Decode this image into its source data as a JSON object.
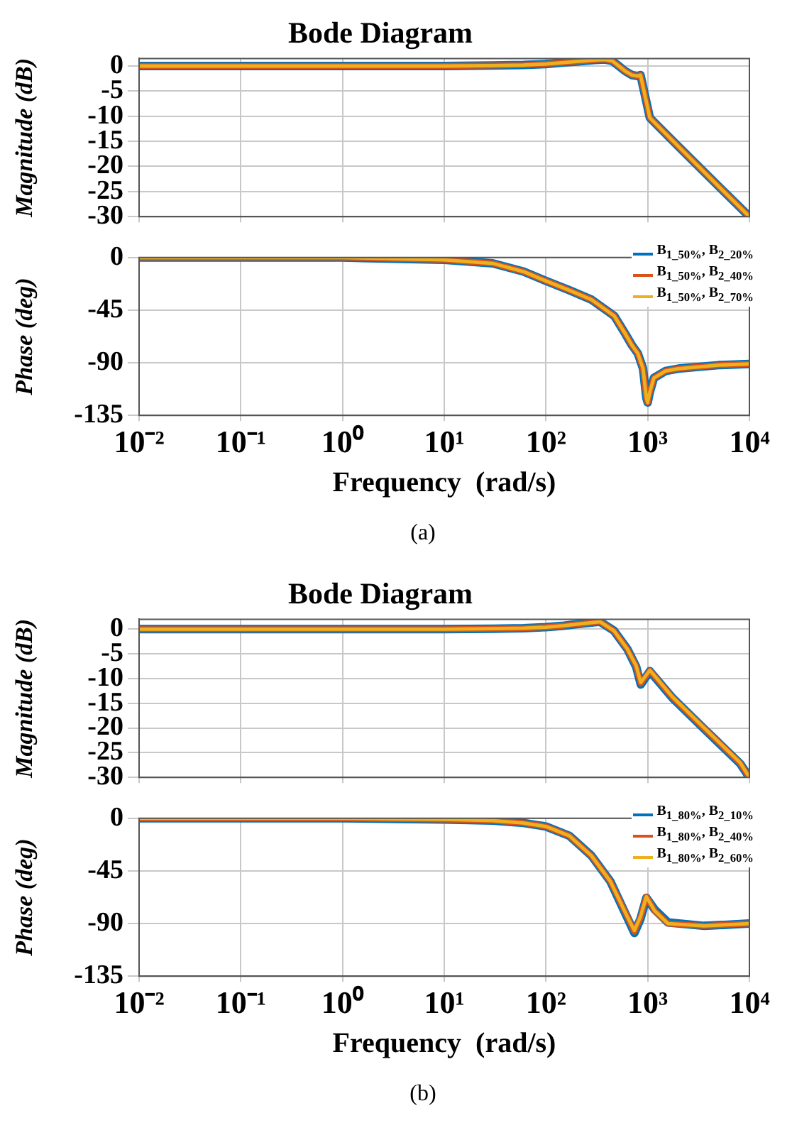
{
  "chart_data": [
    {
      "type": "line",
      "title": "Bode Diagram",
      "ylabel": "Magnitude (dB)",
      "log": "x",
      "grid": true,
      "tick_labels": "y",
      "xlim": [
        0.01,
        10000
      ],
      "xticks": [
        {
          "value": 0.01,
          "label": null
        },
        {
          "value": 0.1,
          "label": null
        },
        {
          "value": 1,
          "label": null
        },
        {
          "value": 10,
          "label": null
        },
        {
          "value": 100,
          "label": null
        },
        {
          "value": 1000,
          "label": null
        },
        {
          "value": 10000,
          "label": null
        }
      ],
      "ylim": [
        -30,
        1.5
      ],
      "yticks": [
        0,
        -5,
        -10,
        -15,
        -20,
        -25,
        -30
      ],
      "x": [
        0.01,
        1,
        10,
        30,
        60,
        100,
        150,
        200,
        300,
        380,
        450,
        520,
        600,
        700,
        800,
        850,
        1050,
        1200,
        2000,
        5000,
        10000
      ],
      "series": [
        {
          "color": "#0072bd",
          "values": [
            0,
            0,
            0,
            0.1,
            0.2,
            0.4,
            0.7,
            0.9,
            1.2,
            1.3,
            1.0,
            0,
            -1.0,
            -1.8,
            -2.0,
            -1.8,
            -10.3,
            -11.5,
            -16,
            -24,
            -30
          ]
        },
        {
          "color": "#d95319",
          "values": [
            0,
            0,
            0,
            0.1,
            0.2,
            0.4,
            0.7,
            0.9,
            1.2,
            1.3,
            1.0,
            0,
            -1.0,
            -1.8,
            -2.0,
            -1.8,
            -10.3,
            -11.5,
            -16,
            -24,
            -30
          ]
        },
        {
          "color": "#edb120",
          "values": [
            0,
            0,
            0,
            0.1,
            0.2,
            0.4,
            0.7,
            0.9,
            1.2,
            1.3,
            1.0,
            0,
            -1.0,
            -1.8,
            -2.0,
            -1.8,
            -10.3,
            -11.5,
            -16,
            -24,
            -30
          ]
        }
      ]
    },
    {
      "type": "line",
      "ylabel": "Phase (deg)",
      "xlabel": "Frequency  (rad/s)",
      "log": "x",
      "grid": true,
      "legend": "top right",
      "annotations": [
        "(a)"
      ],
      "xlim": [
        0.01,
        10000
      ],
      "xticks": [
        {
          "value": 0.01,
          "label": "10⁻²"
        },
        {
          "value": 0.1,
          "label": "10⁻¹"
        },
        {
          "value": 1,
          "label": "10⁰"
        },
        {
          "value": 10,
          "label": "10¹"
        },
        {
          "value": 100,
          "label": "10²"
        },
        {
          "value": 1000,
          "label": "10³"
        },
        {
          "value": 10000,
          "label": "10⁴"
        }
      ],
      "ylim": [
        -135,
        0
      ],
      "yticks": [
        0,
        -45,
        -90,
        -135
      ],
      "x": [
        0.01,
        1,
        10,
        30,
        60,
        100,
        170,
        280,
        470,
        600,
        700,
        800,
        900,
        970,
        1000,
        1050,
        1150,
        1500,
        2000,
        5000,
        10000
      ],
      "series": [
        {
          "name": "B$_{1_50%}$, B$_{2_20%}$",
          "color": "#0072bd",
          "values": [
            0,
            0,
            -2,
            -5,
            -12,
            -20,
            -28,
            -36,
            -50,
            -65,
            -75,
            -82,
            -95,
            -120,
            -124,
            -115,
            -103,
            -97,
            -95,
            -92,
            -91
          ]
        },
        {
          "name": "B$_{1_50%}$, B$_{2_40%}$",
          "color": "#d95319",
          "values": [
            0,
            0,
            -2,
            -5,
            -12,
            -20,
            -28,
            -36,
            -50,
            -65,
            -75,
            -82,
            -95,
            -120,
            -124,
            -115,
            -103,
            -97,
            -95,
            -92,
            -91
          ]
        },
        {
          "name": "B$_{1_50%}$, B$_{2_70%}$",
          "color": "#edb120",
          "values": [
            0,
            0,
            -2,
            -5,
            -12,
            -20,
            -28,
            -36,
            -50,
            -65,
            -75,
            -82,
            -95,
            -120,
            -124,
            -115,
            -103,
            -97,
            -95,
            -92,
            -91
          ]
        }
      ]
    },
    {
      "type": "line",
      "title": "Bode Diagram",
      "ylabel": "Magnitude (dB)",
      "log": "x",
      "grid": true,
      "tick_labels": "y",
      "xlim": [
        0.01,
        10000
      ],
      "xticks": [
        {
          "value": 0.01,
          "label": null
        },
        {
          "value": 0.1,
          "label": null
        },
        {
          "value": 1,
          "label": null
        },
        {
          "value": 10,
          "label": null
        },
        {
          "value": 100,
          "label": null
        },
        {
          "value": 1000,
          "label": null
        },
        {
          "value": 10000,
          "label": null
        }
      ],
      "ylim": [
        -30,
        2
      ],
      "yticks": [
        0,
        -5,
        -10,
        -15,
        -20,
        -25,
        -30
      ],
      "x": [
        0.01,
        1,
        10,
        30,
        60,
        100,
        150,
        200,
        340,
        465,
        630,
        770,
        855,
        1050,
        1750,
        3600,
        8100,
        10000
      ],
      "series": [
        {
          "color": "#0072bd",
          "values": [
            0,
            0,
            0,
            0.1,
            0.2,
            0.4,
            0.7,
            1.0,
            1.5,
            -0.3,
            -4,
            -7.6,
            -11.2,
            -8.5,
            -13.9,
            -20.2,
            -27.2,
            -30
          ]
        },
        {
          "color": "#d95319",
          "values": [
            0,
            0,
            0,
            0.1,
            0.2,
            0.4,
            0.7,
            1.0,
            1.5,
            -0.3,
            -4,
            -7.5,
            -11.0,
            -8.4,
            -13.8,
            -20.1,
            -27.1,
            -30
          ]
        },
        {
          "color": "#edb120",
          "values": [
            0,
            0,
            0,
            0.1,
            0.2,
            0.4,
            0.7,
            1.0,
            1.5,
            -0.3,
            -4,
            -7.4,
            -10.8,
            -8.3,
            -13.7,
            -20,
            -27,
            -30
          ]
        }
      ]
    },
    {
      "type": "line",
      "ylabel": "Phase (deg)",
      "xlabel": "Frequency  (rad/s)",
      "log": "x",
      "grid": true,
      "legend": "top right",
      "annotations": [
        "(b)"
      ],
      "xlim": [
        0.01,
        10000
      ],
      "xticks": [
        {
          "value": 0.01,
          "label": "10⁻²"
        },
        {
          "value": 0.1,
          "label": "10⁻¹"
        },
        {
          "value": 1,
          "label": "10⁰"
        },
        {
          "value": 10,
          "label": "10¹"
        },
        {
          "value": 100,
          "label": "10²"
        },
        {
          "value": 1000,
          "label": "10³"
        },
        {
          "value": 10000,
          "label": "10⁴"
        }
      ],
      "ylim": [
        -135,
        0
      ],
      "yticks": [
        0,
        -45,
        -90,
        -135
      ],
      "x": [
        0.01,
        1,
        10,
        30,
        60,
        100,
        170,
        280,
        430,
        630,
        740,
        850,
        970,
        1170,
        1580,
        3600,
        10000
      ],
      "series": [
        {
          "name": "B$_{1_80%}$, B$_{2_10%}$",
          "color": "#0072bd",
          "values": [
            0,
            0,
            -1,
            -2,
            -4,
            -7,
            -15,
            -32,
            -54,
            -85,
            -98,
            -86,
            -68,
            -78,
            -89,
            -92,
            -90
          ]
        },
        {
          "name": "B$_{1_80%}$, B$_{2_40%}$",
          "color": "#d95319",
          "values": [
            0,
            0,
            -1,
            -2,
            -4,
            -7,
            -15,
            -32,
            -54,
            -84,
            -97,
            -85,
            -67,
            -79,
            -90,
            -92,
            -90
          ]
        },
        {
          "name": "B$_{1_80%}$, B$_{2_60%}$",
          "color": "#edb120",
          "values": [
            0,
            0,
            -1,
            -2,
            -4,
            -7,
            -15,
            -32,
            -54,
            -84,
            -96,
            -84,
            -67,
            -79,
            -90,
            -92,
            -90
          ]
        }
      ]
    }
  ]
}
